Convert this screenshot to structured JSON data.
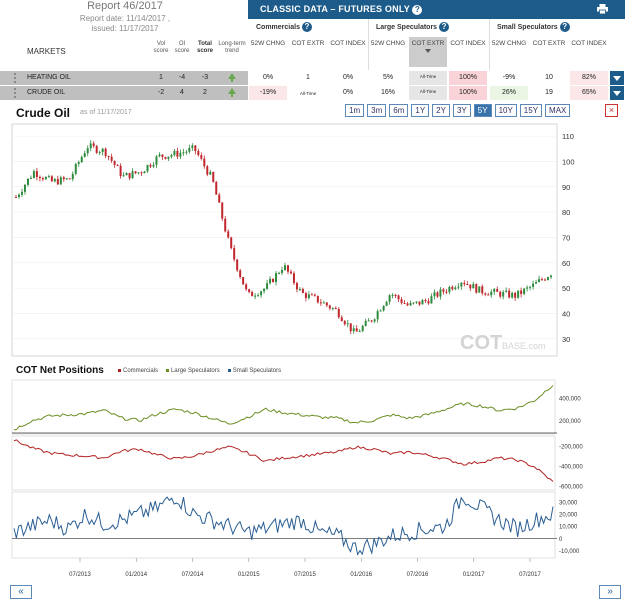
{
  "report": {
    "title": "Report 46/2017",
    "report_date": "Report date: 11/14/2017 ,",
    "issued": "issued: 11/17/2017"
  },
  "columns": {
    "markets": "MARKETS",
    "vol_score": "Vol score",
    "oi_score": "OI score",
    "total_score": "Total score",
    "trend": "Long-term trend"
  },
  "classic": {
    "title": "CLASSIC DATA – FUTURES ONLY",
    "groups": [
      "Commercials",
      "Large Speculators",
      "Small Speculators"
    ],
    "subheads": [
      "52W CHNG",
      "COT EXTR",
      "COT INDEX",
      "52W CHNG",
      "COT EXTR",
      "COT INDEX",
      "52W CHNG",
      "COT EXTR",
      "COT INDEX"
    ]
  },
  "rows": [
    {
      "name": "HEATING OIL",
      "vol": "1",
      "oi": "-4",
      "total": "-3",
      "cells": [
        "0%",
        "1",
        "0%",
        "5%",
        "All-Time",
        "100%",
        "-9%",
        "10",
        "82%"
      ]
    },
    {
      "name": "CRUDE OIL",
      "vol": "-2",
      "oi": "4",
      "total": "2",
      "cells": [
        "-19%",
        "All-Time",
        "0%",
        "16%",
        "All-Time",
        "100%",
        "26%",
        "19",
        "65%"
      ]
    }
  ],
  "chart_header": {
    "title": "Crude Oil",
    "as_of": "as of 11/17/2017",
    "ranges": [
      "1m",
      "3m",
      "6m",
      "1Y",
      "2Y",
      "3Y",
      "5Y",
      "10Y",
      "15Y",
      "MAX"
    ],
    "active_range": "5Y",
    "close": "×"
  },
  "watermark": {
    "main": "COT",
    "sub": "BASE.com"
  },
  "cot": {
    "title": "COT Net Positions",
    "legend": [
      {
        "name": "Commercials",
        "color": "#b22222"
      },
      {
        "name": "Large Speculators",
        "color": "#6b8e23"
      },
      {
        "name": "Small Speculators",
        "color": "#2a5e93"
      }
    ]
  },
  "x_ticks": [
    "07/2013",
    "01/2014",
    "07/2014",
    "01/2015",
    "07/2015",
    "01/2016",
    "07/2016",
    "01/2017",
    "07/2017"
  ],
  "nav": {
    "prev": "«",
    "next": "»"
  },
  "chart_data": [
    {
      "type": "line",
      "title": "Crude Oil",
      "ylabel": "",
      "ylim": [
        24,
        114
      ],
      "yticks": [
        30,
        40,
        50,
        60,
        70,
        80,
        90,
        100,
        110
      ],
      "x_range": [
        "2012-11",
        "2017-11"
      ],
      "series": [
        {
          "name": "Crude Oil",
          "x": [
            "2012-11",
            "2013-01",
            "2013-03",
            "2013-05",
            "2013-07",
            "2013-09",
            "2013-11",
            "2014-01",
            "2014-03",
            "2014-05",
            "2014-07",
            "2014-09",
            "2014-11",
            "2015-01",
            "2015-03",
            "2015-05",
            "2015-07",
            "2015-09",
            "2015-11",
            "2016-01",
            "2016-03",
            "2016-05",
            "2016-07",
            "2016-09",
            "2016-11",
            "2017-01",
            "2017-03",
            "2017-05",
            "2017-07",
            "2017-09",
            "2017-11"
          ],
          "values": [
            86,
            96,
            92,
            93,
            106,
            104,
            94,
            96,
            102,
            103,
            105,
            93,
            66,
            47,
            50,
            59,
            48,
            45,
            41,
            32,
            38,
            48,
            43,
            45,
            49,
            53,
            49,
            48,
            47,
            51,
            56
          ]
        }
      ]
    },
    {
      "type": "line",
      "title": "COT Net Positions",
      "panels": [
        {
          "series": "Large Speculators",
          "yticks": [
            200000,
            400000
          ],
          "values": [
            120000,
            200000,
            240000,
            250000,
            260000,
            290000,
            220000,
            200000,
            260000,
            300000,
            270000,
            220000,
            170000,
            230000,
            300000,
            270000,
            250000,
            230000,
            220000,
            180000,
            200000,
            250000,
            220000,
            250000,
            300000,
            350000,
            330000,
            290000,
            310000,
            380000,
            520000
          ]
        },
        {
          "series": "Commercials",
          "yticks": [
            -200000,
            -400000,
            -600000
          ],
          "values": [
            -140000,
            -220000,
            -270000,
            -290000,
            -300000,
            -320000,
            -250000,
            -230000,
            -290000,
            -330000,
            -300000,
            -250000,
            -210000,
            -270000,
            -350000,
            -320000,
            -300000,
            -280000,
            -260000,
            -210000,
            -230000,
            -280000,
            -260000,
            -290000,
            -330000,
            -380000,
            -360000,
            -320000,
            -340000,
            -410000,
            -560000
          ]
        },
        {
          "series": "Small Speculators",
          "yticks": [
            -10000,
            0,
            10000,
            20000,
            30000
          ],
          "values": [
            5000,
            10000,
            15000,
            8000,
            20000,
            12000,
            15000,
            20000,
            25000,
            35000,
            20000,
            15000,
            10000,
            5000,
            8000,
            12000,
            15000,
            5000,
            2000,
            -8000,
            -5000,
            2000,
            5000,
            8000,
            10000,
            35000,
            25000,
            15000,
            8000,
            15000,
            20000
          ]
        }
      ]
    }
  ]
}
